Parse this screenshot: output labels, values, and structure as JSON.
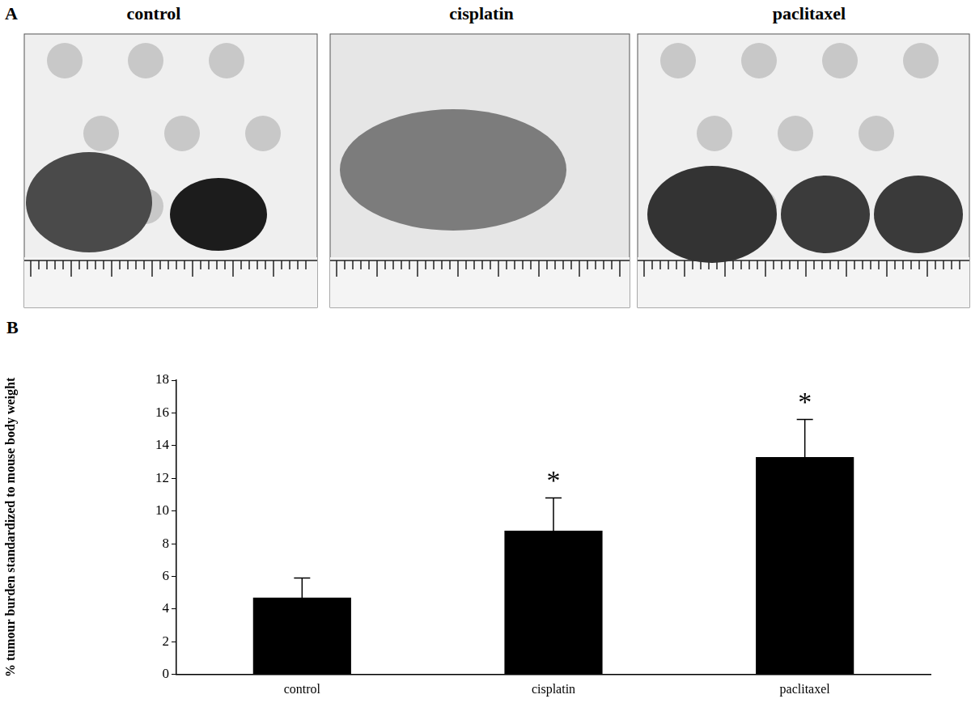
{
  "panel_a": {
    "label": "A",
    "titles": [
      "control",
      "cisplatin",
      "paclitaxel"
    ]
  },
  "chart_data": {
    "type": "bar",
    "panel_label": "B",
    "y_label": "% tumour burden standardized to mouse body weight",
    "categories": [
      "control",
      "cisplatin",
      "paclitaxel"
    ],
    "values": [
      4.7,
      8.8,
      13.3
    ],
    "errors": [
      1.2,
      2.0,
      2.3
    ],
    "annotations": [
      {
        "category": "cisplatin",
        "text": "*"
      },
      {
        "category": "paclitaxel",
        "text": "*"
      }
    ],
    "color": "#000000",
    "ylim": [
      0,
      18
    ],
    "yticks": [
      0,
      2,
      4,
      6,
      8,
      10,
      12,
      14,
      16,
      18
    ],
    "grid": false
  }
}
